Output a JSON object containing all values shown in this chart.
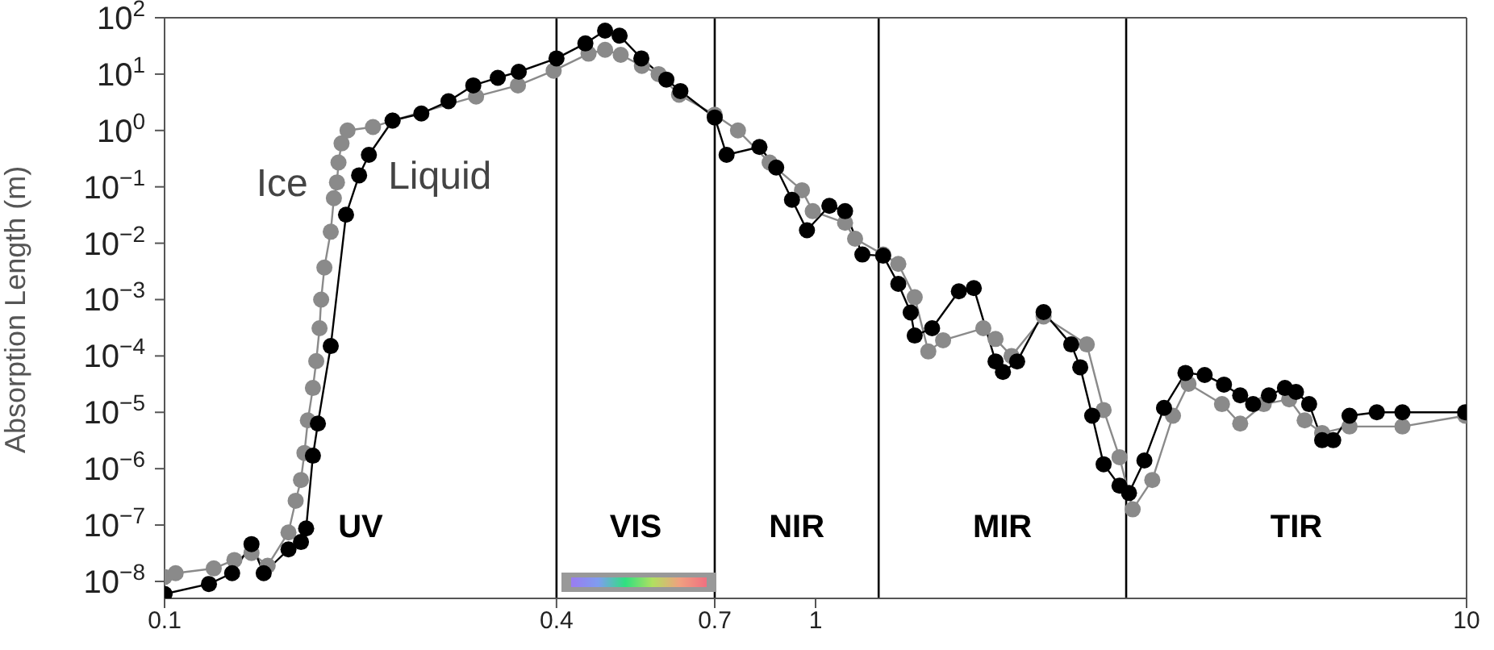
{
  "chart_data": {
    "type": "line",
    "ylabel": "Absorption Length (m)",
    "log": "xy",
    "marker": "circle",
    "line_style": "solid",
    "xlim": [
      0.1,
      10
    ],
    "xticks": [
      0.1,
      0.4,
      0.7,
      1,
      10
    ],
    "ylim": [
      5e-09,
      100
    ],
    "yticks": [
      {
        "value": 1e-08,
        "label": "10$^{−8}$"
      },
      {
        "value": 1e-07,
        "label": "10$^{−7}$"
      },
      {
        "value": 1e-06,
        "label": "10$^{−6}$"
      },
      {
        "value": 1e-05,
        "label": "10$^{−5}$"
      },
      {
        "value": 0.0001,
        "label": "10$^{−4}$"
      },
      {
        "value": 0.001,
        "label": "10$^{−3}$"
      },
      {
        "value": 0.01,
        "label": "10$^{−2}$"
      },
      {
        "value": 0.1,
        "label": "10$^{−1}$"
      },
      {
        "value": 1,
        "label": "10$^{0}$"
      },
      {
        "value": 10,
        "label": "10$^{1}$"
      },
      {
        "value": 100,
        "label": "10$^{2}$"
      }
    ],
    "ref_lines": [
      {
        "axis": "x",
        "value": 0.4,
        "color": "#000000"
      },
      {
        "axis": "x",
        "value": 0.7,
        "color": "#000000"
      },
      {
        "axis": "x",
        "value": 1.25,
        "color": "#000000"
      },
      {
        "axis": "x",
        "value": 3,
        "color": "#000000"
      }
    ],
    "annotations": [
      "UV",
      "VIS",
      "NIR",
      "MIR",
      "TIR"
    ],
    "series": [
      {
        "name": "Ice",
        "color": "#8a8a8a",
        "x": [
          0.1,
          0.104,
          0.119,
          0.128,
          0.136,
          0.144,
          0.155,
          0.159,
          0.162,
          0.164,
          0.166,
          0.169,
          0.171,
          0.173,
          0.174,
          0.176,
          0.18,
          0.182,
          0.184,
          0.185,
          0.187,
          0.191,
          0.209,
          0.224,
          0.301,
          0.349,
          0.396,
          0.448,
          0.475,
          0.502,
          0.541,
          0.574,
          0.617,
          0.7,
          0.76,
          0.85,
          0.953,
          0.99,
          1.11,
          1.15,
          1.27,
          1.34,
          1.42,
          1.49,
          1.57,
          1.81,
          1.89,
          2.0,
          2.24,
          2.61,
          2.77,
          2.93,
          3.07,
          3.29,
          3.54,
          3.74,
          4.21,
          4.49,
          4.88,
          5.34,
          5.64,
          6.0,
          6.61,
          7.97,
          9.95
        ],
        "values": [
          1.2e-08,
          1.4e-08,
          1.7e-08,
          2.4e-08,
          3.2e-08,
          1.9e-08,
          7.4e-08,
          2.7e-07,
          6.3e-07,
          1.9e-06,
          7.2e-06,
          2.7e-05,
          8.1e-05,
          0.00031,
          0.001,
          0.0037,
          0.016,
          0.063,
          0.12,
          0.27,
          0.59,
          1,
          1.15,
          1.5,
          4,
          6.3,
          11.5,
          23,
          27,
          22,
          14,
          10,
          4.3,
          1.9,
          1,
          0.27,
          0.087,
          0.037,
          0.023,
          0.012,
          0.0063,
          0.0043,
          0.0011,
          0.00012,
          0.00019,
          0.00031,
          0.0002,
          0.0001,
          0.0005,
          0.00016,
          1.1e-05,
          1.6e-06,
          1.9e-07,
          6.3e-07,
          8.7e-06,
          3.2e-05,
          1.4e-05,
          6.3e-06,
          1.4e-05,
          1.7e-05,
          7.2e-06,
          4.3e-06,
          5.6e-06,
          5.6e-06,
          8.7e-06
        ]
      },
      {
        "name": "Liquid",
        "color": "#000000",
        "x": [
          0.1,
          0.117,
          0.127,
          0.136,
          0.142,
          0.155,
          0.162,
          0.165,
          0.169,
          0.172,
          0.18,
          0.19,
          0.199,
          0.206,
          0.224,
          0.248,
          0.273,
          0.298,
          0.325,
          0.35,
          0.4,
          0.443,
          0.475,
          0.5,
          0.54,
          0.59,
          0.62,
          0.7,
          0.73,
          0.82,
          0.87,
          0.92,
          0.97,
          1.05,
          1.11,
          1.18,
          1.27,
          1.34,
          1.4,
          1.42,
          1.51,
          1.66,
          1.75,
          1.89,
          1.94,
          2.04,
          2.24,
          2.47,
          2.55,
          2.66,
          2.77,
          2.93,
          3.03,
          3.2,
          3.43,
          3.7,
          3.96,
          4.24,
          4.49,
          4.7,
          4.97,
          5.26,
          5.47,
          5.73,
          6.0,
          6.24,
          6.61,
          7.28,
          7.97,
          9.95
        ],
        "values": [
          6e-09,
          9e-09,
          1.4e-08,
          4.6e-08,
          1.4e-08,
          3.7e-08,
          5e-08,
          8.7e-08,
          1.7e-06,
          6.3e-06,
          0.00015,
          0.032,
          0.16,
          0.37,
          1.5,
          2,
          3.3,
          6.3,
          8.6,
          11,
          19,
          35,
          59,
          48,
          19,
          8,
          5,
          1.7,
          0.37,
          0.51,
          0.22,
          0.059,
          0.017,
          0.046,
          0.037,
          0.0063,
          0.006,
          0.0019,
          0.00059,
          0.00023,
          0.00031,
          0.0014,
          0.0016,
          8e-05,
          5.2e-05,
          8e-05,
          0.0006,
          0.00016,
          6.3e-05,
          8.7e-06,
          1.2e-06,
          5e-07,
          3.7e-07,
          1.4e-06,
          1.2e-05,
          5e-05,
          4.6e-05,
          3.1e-05,
          2e-05,
          1.4e-05,
          2e-05,
          2.7e-05,
          2.3e-05,
          1.4e-05,
          3.2e-06,
          3.2e-06,
          8.7e-06,
          1e-05,
          1e-05,
          1e-05
        ]
      }
    ]
  }
}
